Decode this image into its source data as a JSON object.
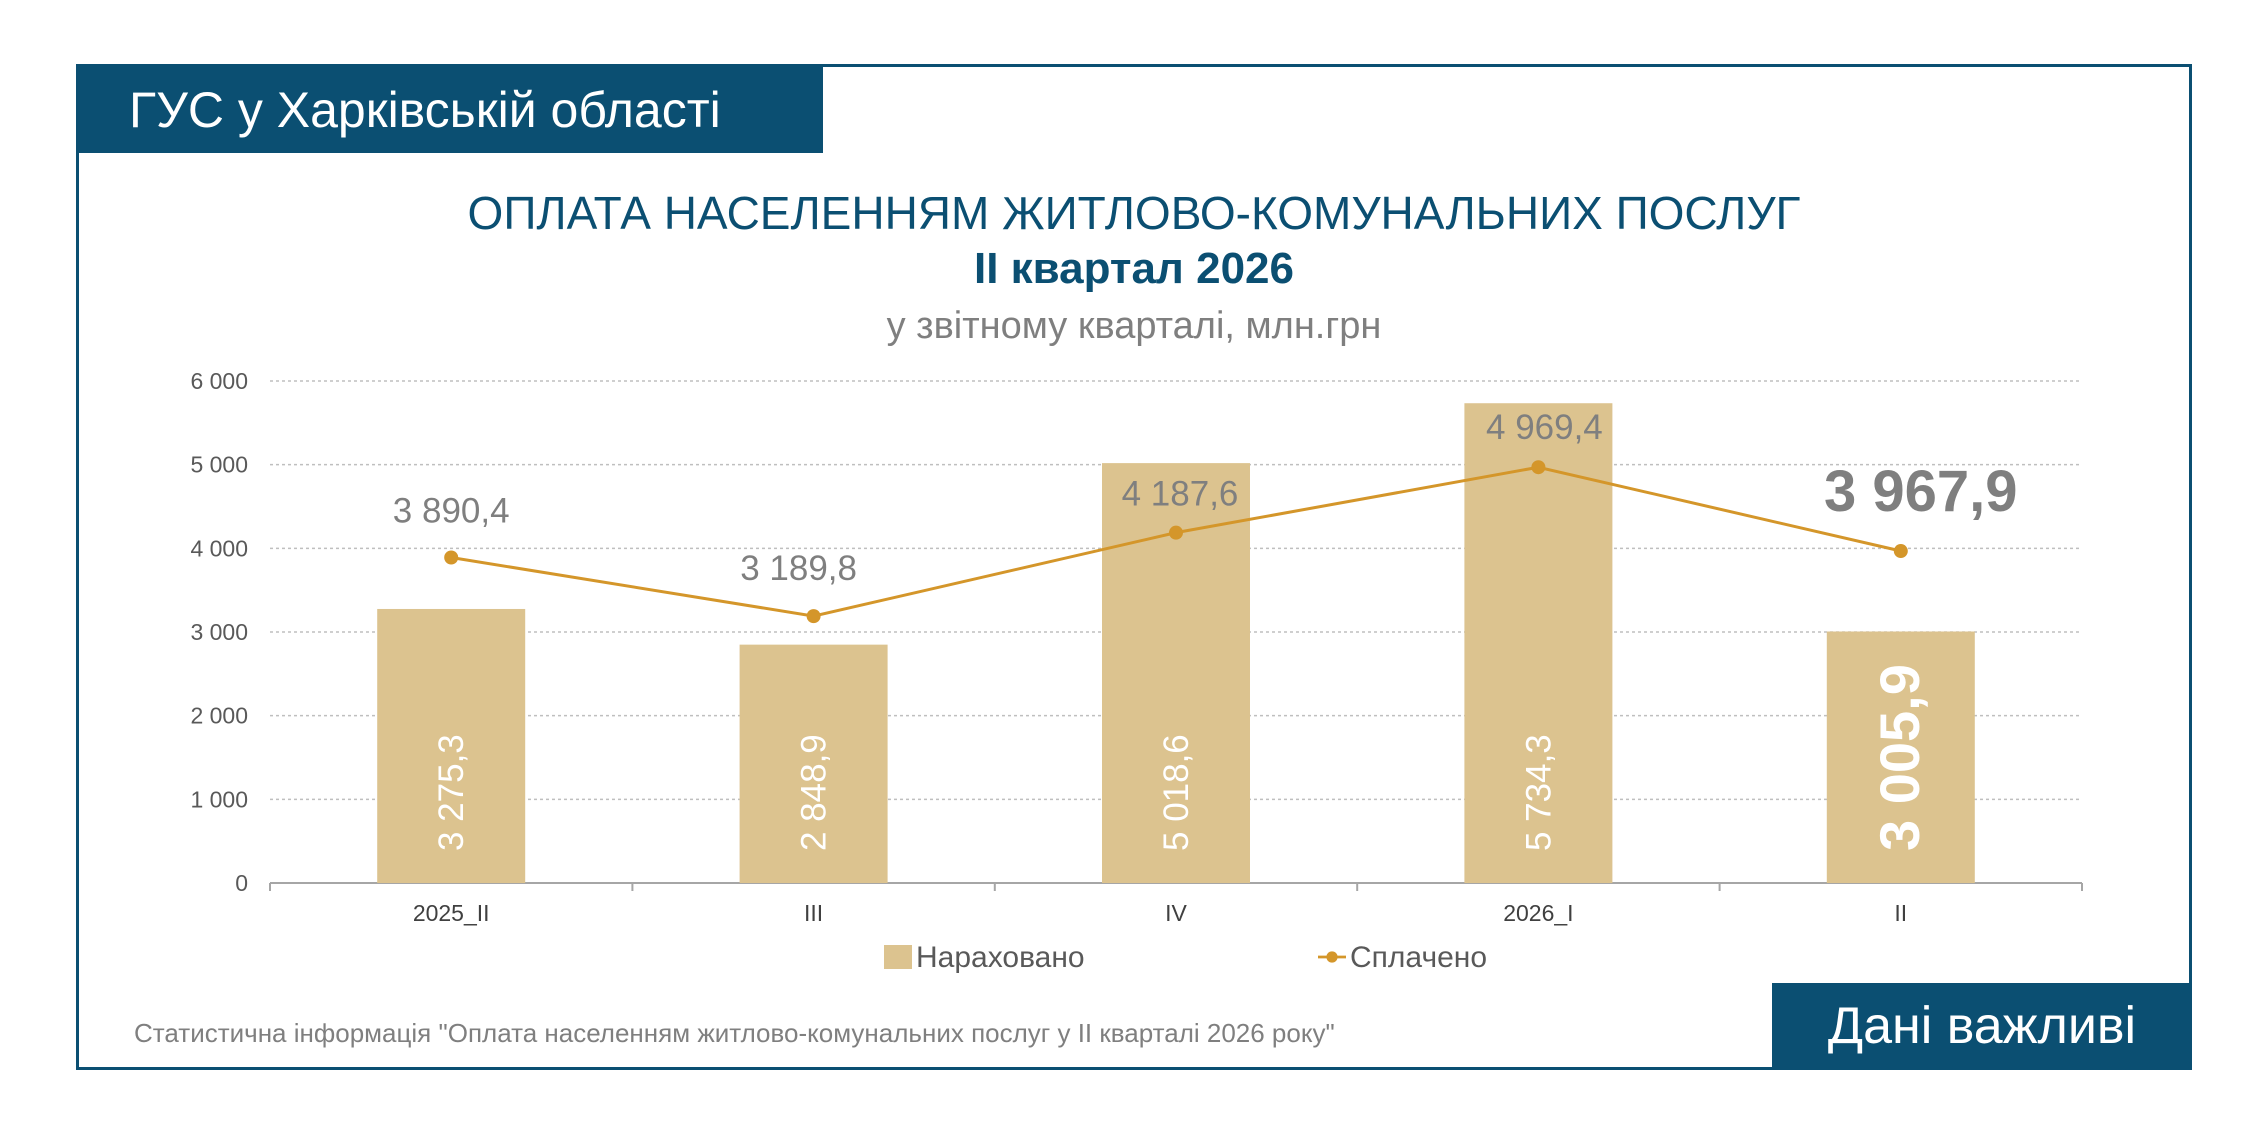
{
  "header": {
    "org": "ГУС у Харківській області",
    "brand": "Дані важливі"
  },
  "footer": {
    "source": "Статистична інформація \"Оплата населенням житлово-комунальних послуг у II кварталі 2026 року\""
  },
  "colors": {
    "primary": "#0b4f72",
    "bar": "#dcc38f",
    "line": "#d4962a",
    "grid": "#bfbfbf",
    "text_gray": "#7f7f7f"
  },
  "chart_data": {
    "type": "bar",
    "title": "ОПЛАТА НАСЕЛЕННЯМ ЖИТЛОВО-КОМУНАЛЬНИХ ПОСЛУГ",
    "subtitle": "II квартал 2026",
    "unit_label": "у звітному кварталі, млн.грн",
    "categories": [
      "2025_II",
      "III",
      "IV",
      "2026_I",
      "II"
    ],
    "series": [
      {
        "name": "Нараховано",
        "type": "bar",
        "values": [
          3275.3,
          2848.9,
          5018.6,
          5734.3,
          3005.9
        ],
        "labels": [
          "3 275,3",
          "2 848,9",
          "5 018,6",
          "5 734,3",
          "3 005,9"
        ]
      },
      {
        "name": "Сплачено",
        "type": "line",
        "values": [
          3890.4,
          3189.8,
          4187.6,
          4969.4,
          3967.9
        ],
        "labels": [
          "3 890,4",
          "3 189,8",
          "4 187,6",
          "4 969,4",
          "3 967,9"
        ]
      }
    ],
    "y_ticks": [
      0,
      1000,
      2000,
      3000,
      4000,
      5000,
      6000
    ],
    "y_tick_labels": [
      "0",
      "1 000",
      "2 000",
      "3 000",
      "4 000",
      "5 000",
      "6 000"
    ],
    "ylim": [
      0,
      6000
    ],
    "grid": true,
    "legend_position": "bottom"
  }
}
